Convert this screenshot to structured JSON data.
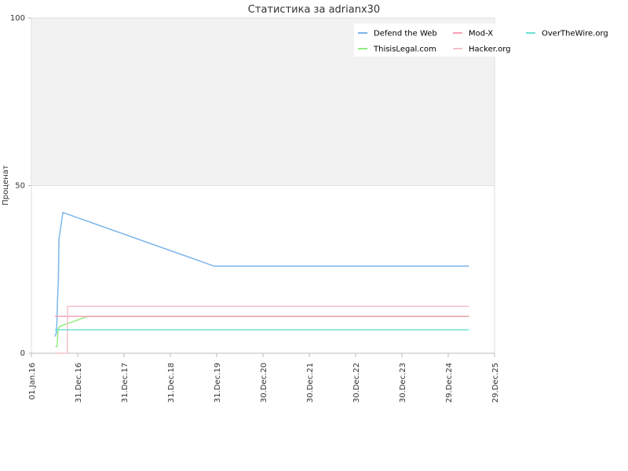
{
  "chart_data": {
    "type": "line",
    "title": "Статистика за adrianx30",
    "xlabel": "",
    "ylabel": "Проценат",
    "x_tick_labels": [
      "01.Jan.16",
      "31.Dec.16",
      "31.Dec.17",
      "31.Dec.18",
      "31.Dec.19",
      "30.Dec.20",
      "30.Dec.21",
      "30.Dec.22",
      "30.Dec.23",
      "29.Dec.24",
      "29.Dec.25"
    ],
    "y_tick_labels": [
      "0",
      "50",
      "100"
    ],
    "xlim": [
      "2016-01-01",
      "2025-12-29"
    ],
    "ylim": [
      0,
      100
    ],
    "grid": false,
    "background_bands": [
      {
        "from": 0,
        "to": 50,
        "color": "#ffffff"
      },
      {
        "from": 50,
        "to": 100,
        "color": "#f2f2f2"
      }
    ],
    "legend_position": "top-right",
    "series": [
      {
        "name": "Defend the Web",
        "color": "#7cb5ec",
        "points": [
          [
            "2016-07-05",
            5
          ],
          [
            "2016-07-15",
            6
          ],
          [
            "2016-07-20",
            9
          ],
          [
            "2016-07-25",
            16
          ],
          [
            "2016-08-01",
            22
          ],
          [
            "2016-08-05",
            34
          ],
          [
            "2016-09-05",
            42
          ],
          [
            "2019-12-10",
            26
          ],
          [
            "2025-06-10",
            26
          ]
        ]
      },
      {
        "name": "ThisisLegal.com",
        "color": "#90ed7d",
        "points": [
          [
            "2016-07-08",
            2
          ],
          [
            "2016-07-22",
            2
          ],
          [
            "2016-07-28",
            7
          ],
          [
            "2016-08-10",
            8
          ],
          [
            "2017-03-20",
            11
          ],
          [
            "2025-06-10",
            11
          ]
        ]
      },
      {
        "name": "Mod-X",
        "color": "#f7a0b5",
        "points": [
          [
            "2016-07-05",
            11
          ],
          [
            "2025-06-10",
            11
          ]
        ]
      },
      {
        "name": "Hacker.org",
        "color": "#f4c2c8",
        "points": [
          [
            "2016-07-08",
            0
          ],
          [
            "2016-10-10",
            0
          ],
          [
            "2016-10-12",
            14
          ],
          [
            "2025-06-10",
            14
          ]
        ]
      },
      {
        "name": "OverTheWire.org",
        "color": "#6fe0d4",
        "points": [
          [
            "2016-07-05",
            7
          ],
          [
            "2025-06-10",
            7
          ]
        ]
      }
    ]
  }
}
